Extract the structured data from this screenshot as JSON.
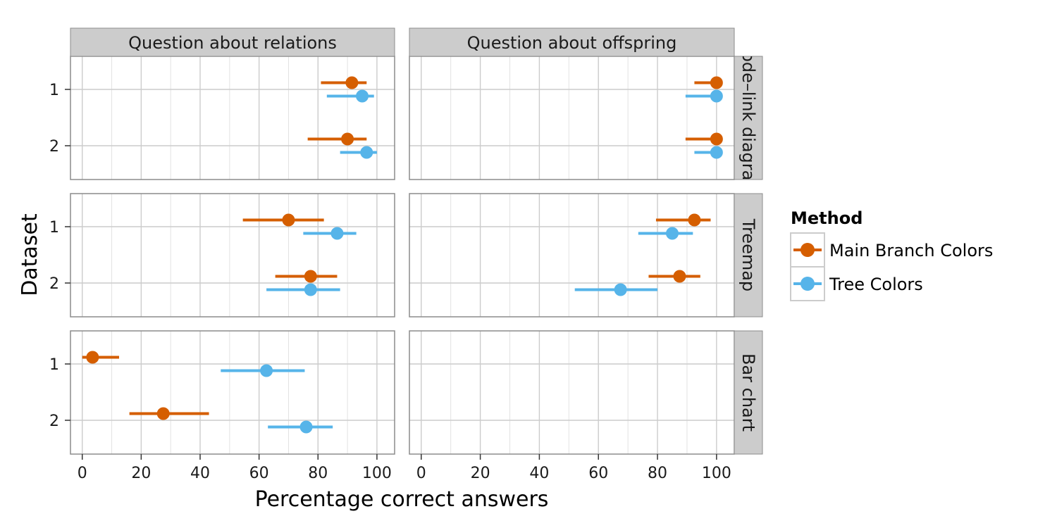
{
  "chart_data": {
    "type": "scatter",
    "subtype": "dot-with-error-bars, faceted",
    "columns": [
      "Question about relations",
      "Question about offspring"
    ],
    "rows": [
      "Node–link diagram",
      "Treemap",
      "Bar chart"
    ],
    "xlabel": "Percentage correct answers",
    "ylabel": "Dataset",
    "xlim": [
      -4,
      106
    ],
    "xticks": [
      0,
      20,
      40,
      60,
      80,
      100
    ],
    "yticks": [
      "1",
      "2"
    ],
    "grid": true,
    "legend": {
      "title": "Method",
      "position": "right",
      "items": [
        {
          "label": "Main Branch Colors",
          "color": "#d55e00"
        },
        {
          "label": "Tree Colors",
          "color": "#56b4e9"
        }
      ]
    },
    "series": [
      {
        "name": "Main Branch Colors",
        "color": "#d55e00",
        "points": [
          {
            "question": "Question about relations",
            "display": "Node–link diagram",
            "dataset": 1,
            "value": 91.5,
            "low": 81,
            "high": 96.5
          },
          {
            "question": "Question about relations",
            "display": "Node–link diagram",
            "dataset": 2,
            "value": 90,
            "low": 76.5,
            "high": 96.5
          },
          {
            "question": "Question about relations",
            "display": "Treemap",
            "dataset": 1,
            "value": 70,
            "low": 54.5,
            "high": 82
          },
          {
            "question": "Question about relations",
            "display": "Treemap",
            "dataset": 2,
            "value": 77.5,
            "low": 65.5,
            "high": 86.5
          },
          {
            "question": "Question about relations",
            "display": "Bar chart",
            "dataset": 1,
            "value": 3.5,
            "low": 0,
            "high": 12.5
          },
          {
            "question": "Question about relations",
            "display": "Bar chart",
            "dataset": 2,
            "value": 27.5,
            "low": 16,
            "high": 43
          },
          {
            "question": "Question about offspring",
            "display": "Node–link diagram",
            "dataset": 1,
            "value": 100,
            "low": 92.5,
            "high": 100
          },
          {
            "question": "Question about offspring",
            "display": "Node–link diagram",
            "dataset": 2,
            "value": 100,
            "low": 89.5,
            "high": 100
          },
          {
            "question": "Question about offspring",
            "display": "Treemap",
            "dataset": 1,
            "value": 92.5,
            "low": 79.5,
            "high": 98
          },
          {
            "question": "Question about offspring",
            "display": "Treemap",
            "dataset": 2,
            "value": 87.5,
            "low": 77,
            "high": 94.5
          }
        ]
      },
      {
        "name": "Tree Colors",
        "color": "#56b4e9",
        "points": [
          {
            "question": "Question about relations",
            "display": "Node–link diagram",
            "dataset": 1,
            "value": 95,
            "low": 83,
            "high": 99
          },
          {
            "question": "Question about relations",
            "display": "Node–link diagram",
            "dataset": 2,
            "value": 96.5,
            "low": 87.5,
            "high": 100
          },
          {
            "question": "Question about relations",
            "display": "Treemap",
            "dataset": 1,
            "value": 86.5,
            "low": 75,
            "high": 93
          },
          {
            "question": "Question about relations",
            "display": "Treemap",
            "dataset": 2,
            "value": 77.5,
            "low": 62.5,
            "high": 87.5
          },
          {
            "question": "Question about relations",
            "display": "Bar chart",
            "dataset": 1,
            "value": 62.5,
            "low": 47,
            "high": 75.5
          },
          {
            "question": "Question about relations",
            "display": "Bar chart",
            "dataset": 2,
            "value": 76,
            "low": 63,
            "high": 85
          },
          {
            "question": "Question about offspring",
            "display": "Node–link diagram",
            "dataset": 1,
            "value": 100,
            "low": 89.5,
            "high": 100
          },
          {
            "question": "Question about offspring",
            "display": "Node–link diagram",
            "dataset": 2,
            "value": 100,
            "low": 92.5,
            "high": 100
          },
          {
            "question": "Question about offspring",
            "display": "Treemap",
            "dataset": 1,
            "value": 85,
            "low": 73.5,
            "high": 92
          },
          {
            "question": "Question about offspring",
            "display": "Treemap",
            "dataset": 2,
            "value": 67.5,
            "low": 52,
            "high": 80
          }
        ]
      }
    ]
  }
}
